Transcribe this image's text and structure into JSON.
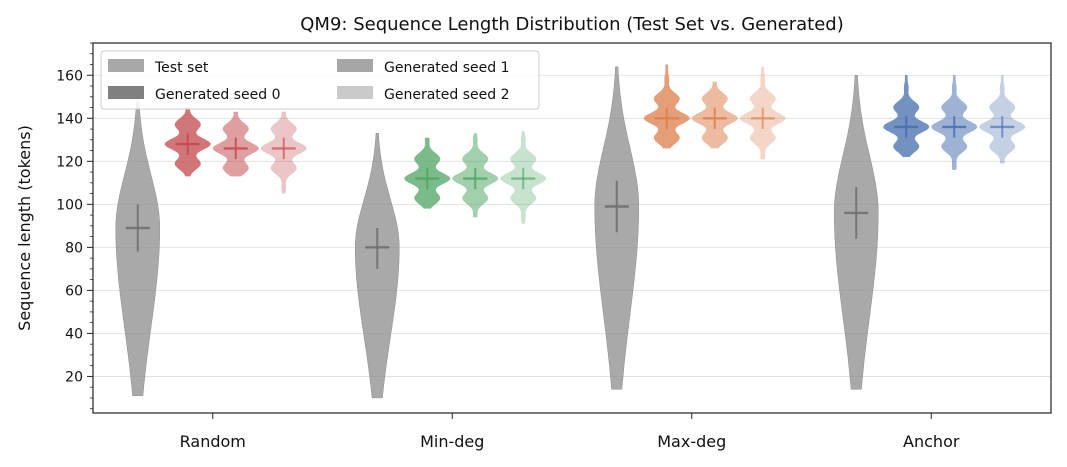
{
  "chart_data": {
    "type": "violin",
    "title": "QM9: Sequence Length Distribution (Test Set vs. Generated)",
    "xlabel": "",
    "ylabel": "Sequence length (tokens)",
    "ylim": [
      3,
      175
    ],
    "yticks": [
      20,
      40,
      60,
      80,
      100,
      120,
      140,
      160
    ],
    "grid": "horizontal",
    "legend_position": "top-left",
    "legend": [
      "Test set",
      "Generated seed 0",
      "Generated seed 1",
      "Generated seed 2"
    ],
    "categories": [
      "Random",
      "Min-deg",
      "Max-deg",
      "Anchor"
    ],
    "groups": [
      {
        "category": "Random",
        "color": "#c44e52",
        "test": {
          "min": 11,
          "max": 148,
          "median": 89,
          "q1": 78,
          "q3": 100
        },
        "generated": [
          {
            "seed": 0,
            "min": 113,
            "max": 145,
            "median": 128,
            "q1": 123,
            "q3": 133
          },
          {
            "seed": 1,
            "min": 113,
            "max": 143,
            "median": 126,
            "q1": 121,
            "q3": 131
          },
          {
            "seed": 2,
            "min": 105,
            "max": 143,
            "median": 126,
            "q1": 121,
            "q3": 131
          }
        ]
      },
      {
        "category": "Min-deg",
        "color": "#55a868",
        "test": {
          "min": 10,
          "max": 133,
          "median": 80,
          "q1": 70,
          "q3": 89
        },
        "generated": [
          {
            "seed": 0,
            "min": 98,
            "max": 131,
            "median": 112,
            "q1": 107,
            "q3": 117
          },
          {
            "seed": 1,
            "min": 94,
            "max": 133,
            "median": 112,
            "q1": 107,
            "q3": 117
          },
          {
            "seed": 2,
            "min": 91,
            "max": 134,
            "median": 112,
            "q1": 107,
            "q3": 117
          }
        ]
      },
      {
        "category": "Max-deg",
        "color": "#dd8452",
        "test": {
          "min": 14,
          "max": 164,
          "median": 99,
          "q1": 87,
          "q3": 111
        },
        "generated": [
          {
            "seed": 0,
            "min": 126,
            "max": 165,
            "median": 140,
            "q1": 135,
            "q3": 145
          },
          {
            "seed": 1,
            "min": 126,
            "max": 157,
            "median": 140,
            "q1": 135,
            "q3": 145
          },
          {
            "seed": 2,
            "min": 121,
            "max": 164,
            "median": 140,
            "q1": 135,
            "q3": 145
          }
        ]
      },
      {
        "category": "Anchor",
        "color": "#4c72b0",
        "test": {
          "min": 14,
          "max": 160,
          "median": 96,
          "q1": 84,
          "q3": 108
        },
        "generated": [
          {
            "seed": 0,
            "min": 122,
            "max": 160,
            "median": 136,
            "q1": 131,
            "q3": 141
          },
          {
            "seed": 1,
            "min": 116,
            "max": 160,
            "median": 136,
            "q1": 131,
            "q3": 141
          },
          {
            "seed": 2,
            "min": 119,
            "max": 160,
            "median": 136,
            "q1": 131,
            "q3": 141
          }
        ]
      }
    ],
    "colors": {
      "test_set": "#8c8c8c",
      "legend_test": "#a8a8a8",
      "legend_seed0": "#808080",
      "legend_seed1": "#a6a6a6",
      "legend_seed2": "#cacaca",
      "grid": "#dddddd",
      "axis": "#222222"
    },
    "opacity": {
      "test": 0.75,
      "seed0": 0.78,
      "seed1": 0.55,
      "seed2": 0.33
    }
  }
}
